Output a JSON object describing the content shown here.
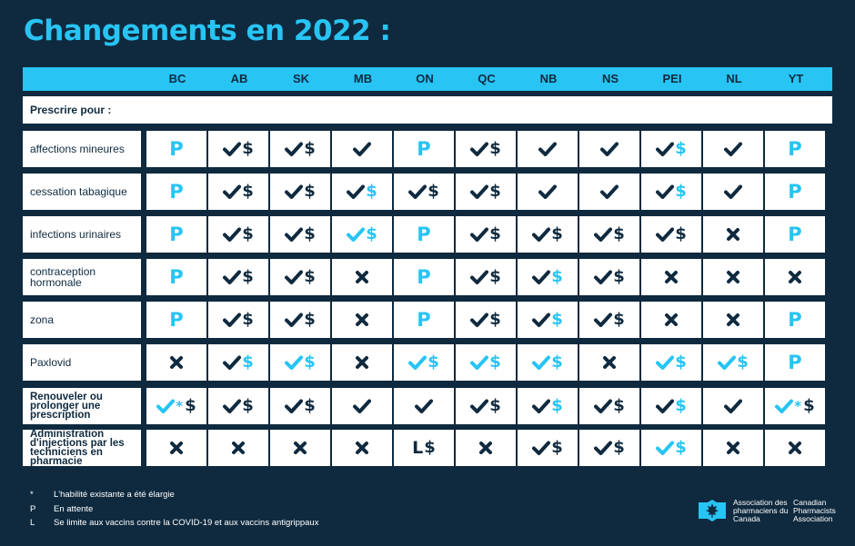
{
  "title": "Changements en 2022 :",
  "colors": {
    "accent": "#27c4f4",
    "dark": "#0f2a3f",
    "white": "#ffffff"
  },
  "provinces": [
    "BC",
    "AB",
    "SK",
    "MB",
    "ON",
    "QC",
    "NB",
    "NS",
    "PEI",
    "NL",
    "YT"
  ],
  "section_label": "Prescrire pour :",
  "rows": [
    {
      "label": "affections mineures",
      "bold": false,
      "cells": [
        [
          "P"
        ],
        [
          "check",
          "dollar"
        ],
        [
          "check",
          "dollar"
        ],
        [
          "check"
        ],
        [
          "P"
        ],
        [
          "check",
          "dollar"
        ],
        [
          "check"
        ],
        [
          "check"
        ],
        [
          "check",
          "dollar-c"
        ],
        [
          "check"
        ],
        [
          "P"
        ]
      ]
    },
    {
      "label": "cessation tabagique",
      "bold": false,
      "cells": [
        [
          "P"
        ],
        [
          "check",
          "dollar"
        ],
        [
          "check",
          "dollar"
        ],
        [
          "check",
          "dollar-c"
        ],
        [
          "check",
          "dollar"
        ],
        [
          "check",
          "dollar"
        ],
        [
          "check"
        ],
        [
          "check"
        ],
        [
          "check",
          "dollar-c"
        ],
        [
          "check"
        ],
        [
          "P"
        ]
      ]
    },
    {
      "label": "infections urinaires",
      "bold": false,
      "cells": [
        [
          "P"
        ],
        [
          "check",
          "dollar"
        ],
        [
          "check",
          "dollar"
        ],
        [
          "check-c",
          "dollar-c"
        ],
        [
          "P"
        ],
        [
          "check",
          "dollar"
        ],
        [
          "check",
          "dollar"
        ],
        [
          "check",
          "dollar"
        ],
        [
          "check",
          "dollar"
        ],
        [
          "x"
        ],
        [
          "P"
        ]
      ]
    },
    {
      "label": "contraception hormonale",
      "bold": false,
      "cells": [
        [
          "P"
        ],
        [
          "check",
          "dollar"
        ],
        [
          "check",
          "dollar"
        ],
        [
          "x"
        ],
        [
          "P"
        ],
        [
          "check",
          "dollar"
        ],
        [
          "check",
          "dollar-c"
        ],
        [
          "check",
          "dollar"
        ],
        [
          "x"
        ],
        [
          "x"
        ],
        [
          "x"
        ]
      ]
    },
    {
      "label": "zona",
      "bold": false,
      "cells": [
        [
          "P"
        ],
        [
          "check",
          "dollar"
        ],
        [
          "check",
          "dollar"
        ],
        [
          "x"
        ],
        [
          "P"
        ],
        [
          "check",
          "dollar"
        ],
        [
          "check",
          "dollar-c"
        ],
        [
          "check",
          "dollar"
        ],
        [
          "x"
        ],
        [
          "x"
        ],
        [
          "P"
        ]
      ]
    },
    {
      "label": "Paxlovid",
      "bold": false,
      "cells": [
        [
          "x"
        ],
        [
          "check",
          "dollar-c"
        ],
        [
          "check-c",
          "dollar-c"
        ],
        [
          "x"
        ],
        [
          "check-c",
          "dollar-c"
        ],
        [
          "check-c",
          "dollar-c"
        ],
        [
          "check-c",
          "dollar-c"
        ],
        [
          "x"
        ],
        [
          "check-c",
          "dollar-c"
        ],
        [
          "check-c",
          "dollar-c"
        ],
        [
          "P"
        ]
      ]
    },
    {
      "label": "Renouveler ou prolonger une prescription",
      "bold": true,
      "cells": [
        [
          "check-c",
          "star-c",
          "dollar"
        ],
        [
          "check",
          "dollar"
        ],
        [
          "check",
          "dollar"
        ],
        [
          "check"
        ],
        [
          "check"
        ],
        [
          "check",
          "dollar"
        ],
        [
          "check",
          "dollar-c"
        ],
        [
          "check",
          "dollar"
        ],
        [
          "check",
          "dollar-c"
        ],
        [
          "check"
        ],
        [
          "check-c",
          "star-c",
          "dollar"
        ]
      ]
    },
    {
      "label": "Administration d'injections par les techniciens en pharmacie",
      "bold": true,
      "cells": [
        [
          "x"
        ],
        [
          "x"
        ],
        [
          "x"
        ],
        [
          "x"
        ],
        [
          "L",
          "dollar"
        ],
        [
          "x"
        ],
        [
          "check",
          "dollar"
        ],
        [
          "check",
          "dollar"
        ],
        [
          "check-c",
          "dollar-c"
        ],
        [
          "x"
        ],
        [
          "x"
        ]
      ]
    }
  ],
  "footnotes": [
    {
      "symbol": "*",
      "text": "L'habilité existante a été élargie"
    },
    {
      "symbol": "P",
      "text": "En attente"
    },
    {
      "symbol": "L",
      "text": "Se limite aux vaccins contre la COVID-19 et aux vaccins antigrippaux"
    }
  ],
  "logo": {
    "fr": "Association des pharmaciens du Canada",
    "en": "Canadian Pharmacists Association",
    "icon": "maple-leaf-icon"
  }
}
